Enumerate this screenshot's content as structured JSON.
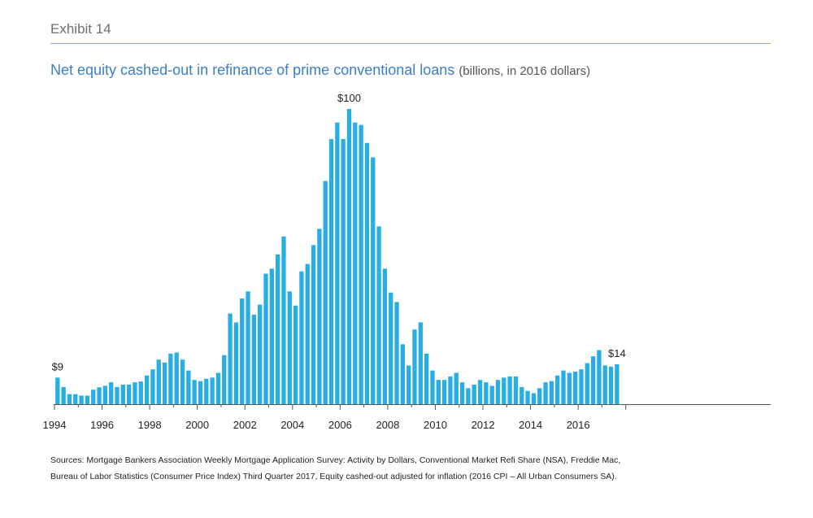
{
  "header": {
    "exhibit_label": "Exhibit 14"
  },
  "chart_data": {
    "type": "bar",
    "title": "Net equity cashed-out in refinance of prime conventional loans",
    "subtitle": "(billions, in 2016 dollars)",
    "xlabel": "",
    "ylabel": "",
    "frequency": "quarterly",
    "x_tick_labels": [
      "1994",
      "1996",
      "1998",
      "2000",
      "2002",
      "2004",
      "2006",
      "2008",
      "2010",
      "2012",
      "2014",
      "2016"
    ],
    "ylim": [
      0,
      100
    ],
    "grid": false,
    "bar_color": "#29aee2",
    "categories": [
      "1994 Q1",
      "1994 Q2",
      "1994 Q3",
      "1994 Q4",
      "1995 Q1",
      "1995 Q2",
      "1995 Q3",
      "1995 Q4",
      "1996 Q1",
      "1996 Q2",
      "1996 Q3",
      "1996 Q4",
      "1997 Q1",
      "1997 Q2",
      "1997 Q3",
      "1997 Q4",
      "1998 Q1",
      "1998 Q2",
      "1998 Q3",
      "1998 Q4",
      "1999 Q1",
      "1999 Q2",
      "1999 Q3",
      "1999 Q4",
      "2000 Q1",
      "2000 Q2",
      "2000 Q3",
      "2000 Q4",
      "2001 Q1",
      "2001 Q2",
      "2001 Q3",
      "2001 Q4",
      "2002 Q1",
      "2002 Q2",
      "2002 Q3",
      "2002 Q4",
      "2003 Q1",
      "2003 Q2",
      "2003 Q3",
      "2003 Q4",
      "2004 Q1",
      "2004 Q2",
      "2004 Q3",
      "2004 Q4",
      "2005 Q1",
      "2005 Q2",
      "2005 Q3",
      "2005 Q4",
      "2006 Q1",
      "2006 Q2",
      "2006 Q3",
      "2006 Q4",
      "2007 Q1",
      "2007 Q2",
      "2007 Q3",
      "2007 Q4",
      "2008 Q1",
      "2008 Q2",
      "2008 Q3",
      "2008 Q4",
      "2009 Q1",
      "2009 Q2",
      "2009 Q3",
      "2009 Q4",
      "2010 Q1",
      "2010 Q2",
      "2010 Q3",
      "2010 Q4",
      "2011 Q1",
      "2011 Q2",
      "2011 Q3",
      "2011 Q4",
      "2012 Q1",
      "2012 Q2",
      "2012 Q3",
      "2012 Q4",
      "2013 Q1",
      "2013 Q2",
      "2013 Q3",
      "2013 Q4",
      "2014 Q1",
      "2014 Q2",
      "2014 Q3",
      "2014 Q4",
      "2015 Q1",
      "2015 Q2",
      "2015 Q3",
      "2015 Q4",
      "2016 Q1",
      "2016 Q2",
      "2016 Q3",
      "2016 Q4",
      "2017 Q1",
      "2017 Q2",
      "2017 Q3"
    ],
    "values": [
      9,
      5.8,
      3.4,
      3.4,
      2.9,
      2.9,
      4.9,
      5.7,
      6.2,
      7.4,
      5.8,
      6.6,
      6.6,
      7.4,
      7.7,
      9.7,
      11.8,
      15.1,
      14.1,
      17.1,
      17.5,
      15.1,
      11.4,
      8.2,
      7.8,
      8.6,
      9.0,
      10.6,
      16.6,
      30.7,
      27.7,
      35.8,
      38.2,
      30.3,
      33.7,
      44.2,
      45.9,
      50.7,
      56.8,
      38.2,
      33.4,
      45.0,
      47.5,
      53.9,
      59.4,
      75.6,
      89.8,
      95.4,
      89.8,
      100,
      95.4,
      94.6,
      88.5,
      83.6,
      60.2,
      45.9,
      37.8,
      34.6,
      20.3,
      13.1,
      25.3,
      27.7,
      17.1,
      11.4,
      8.2,
      8.2,
      9.4,
      10.6,
      7.4,
      5.4,
      6.6,
      8.2,
      7.4,
      6.2,
      8.2,
      9.0,
      9.4,
      9.4,
      5.8,
      4.5,
      3.7,
      5.4,
      7.4,
      7.8,
      9.7,
      11.4,
      10.6,
      11.0,
      11.8,
      13.9,
      16.2,
      18.3,
      13.1,
      12.7,
      13.5
    ],
    "annotations": [
      {
        "label": "$9",
        "category": "1994 Q1"
      },
      {
        "label": "$100",
        "category": "2006 Q2"
      },
      {
        "label": "$14",
        "category": "2017 Q3"
      }
    ]
  },
  "footer": {
    "sources_line1": "Sources: Mortgage Bankers Association Weekly Mortgage Application Survey: Activity by Dollars, Conventional Market Refi Share (NSA), Freddie Mac,",
    "sources_line2": "Bureau of Labor Statistics (Consumer Price Index) Third Quarter 2017, Equity cashed-out adjusted for inflation (2016 CPI – All Urban Consumers SA)."
  }
}
